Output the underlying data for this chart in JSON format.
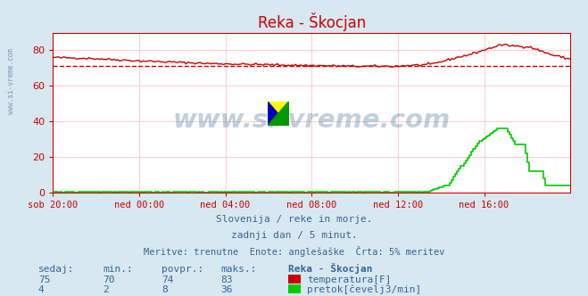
{
  "title": "Reka - Škocjan",
  "title_color": "#cc0000",
  "bg_color": "#d8e8f0",
  "plot_bg_color": "#ffffff",
  "grid_color": "#ffcccc",
  "axis_color": "#cc0000",
  "text_color": "#336699",
  "xlabel_ticks": [
    "sob 20:00",
    "ned 00:00",
    "ned 04:00",
    "ned 08:00",
    "ned 12:00",
    "ned 16:00"
  ],
  "ylabel_ticks": [
    0,
    20,
    40,
    60,
    80
  ],
  "ylim": [
    0,
    90
  ],
  "xlim": [
    0,
    288
  ],
  "subtitle1": "Slovenija / reke in morje.",
  "subtitle2": "zadnji dan / 5 minut.",
  "subtitle3": "Meritve: trenutne  Enote: anglešaške  Črta: 5% meritev",
  "table_headers": [
    "sedaj:",
    "min.:",
    "povpr.:",
    "maks.:",
    "Reka - Škocjan"
  ],
  "row1": [
    "75",
    "70",
    "74",
    "83",
    "temperatura[F]"
  ],
  "row2": [
    "4",
    "2",
    "8",
    "36",
    "pretok[čevelj3/min]"
  ],
  "temp_color": "#cc0000",
  "flow_color": "#00cc00",
  "ref_line_y": 71,
  "ref_line_color": "#cc0000",
  "watermark": "www.si-vreme.com",
  "n_points": 289,
  "side_label": "www.si-vreme.com"
}
